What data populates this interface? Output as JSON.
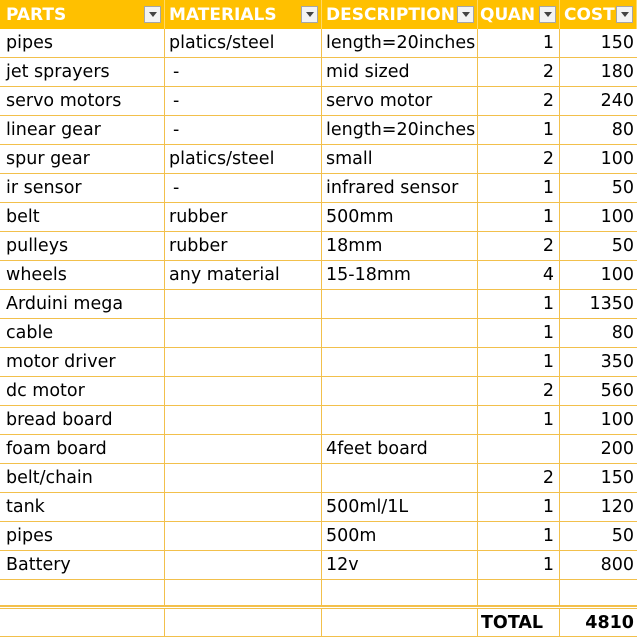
{
  "header": {
    "parts": "PARTS",
    "materials": "MATERIALS",
    "description": "DESCRIPTION",
    "quantity": "QUAN",
    "cost": "COST"
  },
  "rows": [
    {
      "part": "pipes",
      "material": "platics/steel",
      "description": "length=20inches",
      "qty": "1",
      "cost": "150"
    },
    {
      "part": "jet sprayers",
      "material": "-",
      "description": "mid sized",
      "qty": "2",
      "cost": "180"
    },
    {
      "part": "servo motors",
      "material": "-",
      "description": "servo motor",
      "qty": "2",
      "cost": "240"
    },
    {
      "part": "linear gear",
      "material": "-",
      "description": "length=20inches",
      "qty": "1",
      "cost": "80"
    },
    {
      "part": "spur gear",
      "material": "platics/steel",
      "description": "small",
      "qty": "2",
      "cost": "100"
    },
    {
      "part": "ir sensor",
      "material": "-",
      "description": "infrared sensor",
      "qty": "1",
      "cost": "50"
    },
    {
      "part": "belt",
      "material": "rubber",
      "description": "500mm",
      "qty": "1",
      "cost": "100"
    },
    {
      "part": "pulleys",
      "material": "rubber",
      "description": "18mm",
      "qty": "2",
      "cost": "50"
    },
    {
      "part": "wheels",
      "material": "any material",
      "description": "15-18mm",
      "qty": "4",
      "cost": "100"
    },
    {
      "part": "Arduini mega",
      "material": "",
      "description": "",
      "qty": "1",
      "cost": "1350"
    },
    {
      "part": "cable",
      "material": "",
      "description": "",
      "qty": "1",
      "cost": "80"
    },
    {
      "part": "motor driver",
      "material": "",
      "description": "",
      "qty": "1",
      "cost": "350"
    },
    {
      "part": "dc motor",
      "material": "",
      "description": "",
      "qty": "2",
      "cost": "560"
    },
    {
      "part": "bread board",
      "material": "",
      "description": "",
      "qty": "1",
      "cost": "100"
    },
    {
      "part": "foam board",
      "material": "",
      "description": "4feet board",
      "qty": "",
      "cost": "200"
    },
    {
      "part": "belt/chain",
      "material": "",
      "description": "",
      "qty": "2",
      "cost": "150"
    },
    {
      "part": "tank",
      "material": "",
      "description": "500ml/1L",
      "qty": "1",
      "cost": "120"
    },
    {
      "part": "pipes",
      "material": "",
      "description": "500m",
      "qty": "1",
      "cost": "50"
    },
    {
      "part": "Battery",
      "material": "",
      "description": "12v",
      "qty": "1",
      "cost": "800"
    }
  ],
  "total": {
    "label": "TOTAL",
    "value": "4810"
  },
  "colors": {
    "header_bg": "#ffc000",
    "header_text": "#ffffff",
    "grid_line": "#f2c04c"
  },
  "icons": {
    "filter": "chevron-down-icon"
  }
}
